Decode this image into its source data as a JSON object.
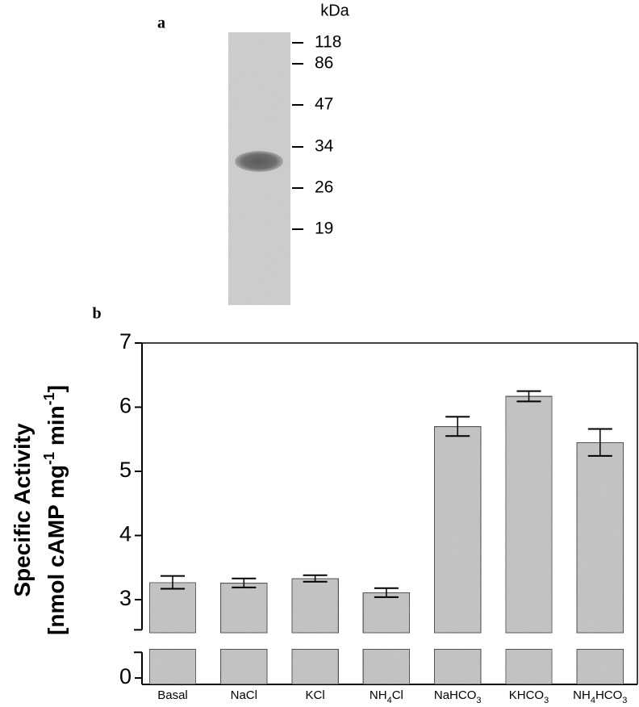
{
  "gel": {
    "label": "a",
    "unit": "kDa",
    "markers": [
      118,
      86,
      47,
      34,
      26,
      19
    ]
  },
  "chart_data": {
    "type": "bar",
    "panel_label": "b",
    "y_label": [
      "Specific Activity",
      "[nmol cAMP mg-1 min-1]"
    ],
    "categories": [
      "Basal",
      "NaCl",
      "KCl",
      "NH4Cl",
      "NaHCO3",
      "KHCO3",
      "NH4HCO3"
    ],
    "values": [
      3.27,
      3.26,
      3.33,
      3.11,
      5.7,
      6.17,
      5.45
    ],
    "errors": [
      0.1,
      0.07,
      0.05,
      0.07,
      0.15,
      0.08,
      0.21
    ],
    "color": "#c4c4c4",
    "ylim": [
      -0.1,
      7
    ],
    "axis_break": [
      0.4,
      2.53
    ],
    "yticks": [
      0,
      3,
      4,
      5,
      6,
      7
    ]
  }
}
